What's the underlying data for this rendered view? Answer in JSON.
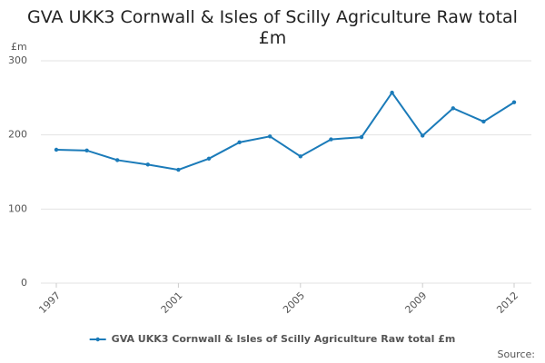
{
  "chart_data": {
    "type": "line",
    "title": "GVA UKK3 Cornwall & Isles of Scilly Agriculture Raw total £m",
    "y_label": "£m",
    "source": "Source:",
    "x": [
      1997,
      1998,
      1999,
      2000,
      2001,
      2002,
      2003,
      2004,
      2005,
      2006,
      2007,
      2008,
      2009,
      2010,
      2011,
      2012
    ],
    "series": [
      {
        "name": "GVA UKK3 Cornwall & Isles of Scilly Agriculture Raw total £m",
        "color": "#1b7bb9",
        "values": [
          180,
          179,
          166,
          160,
          153,
          168,
          190,
          198,
          171,
          194,
          197,
          257,
          199,
          236,
          218,
          244
        ]
      }
    ],
    "xlim": [
      1997,
      2012
    ],
    "xticks": [
      1997,
      2001,
      2005,
      2009,
      2012
    ],
    "ylim": [
      0,
      300
    ],
    "yticks": [
      0,
      100,
      200,
      300
    ],
    "grid": true,
    "legend": "bottom"
  }
}
